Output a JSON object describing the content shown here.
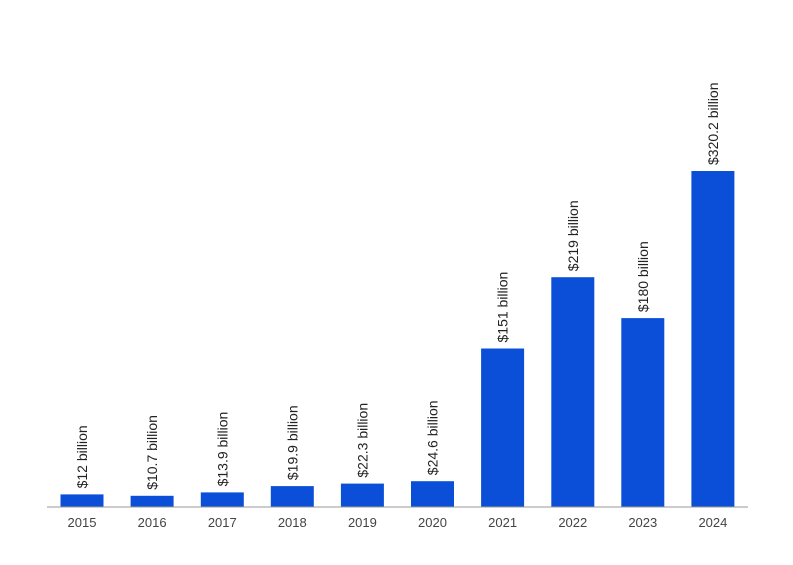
{
  "chart_data": {
    "type": "bar",
    "categories": [
      "2015",
      "2016",
      "2017",
      "2018",
      "2019",
      "2020",
      "2021",
      "2022",
      "2023",
      "2024"
    ],
    "values": [
      12,
      10.7,
      13.9,
      19.9,
      22.3,
      24.6,
      151,
      219,
      180,
      320.2
    ],
    "data_labels": [
      "$12 billion",
      "$10.7 billion",
      "$13.9 billion",
      "$19.9 billion",
      "$22.3 billion",
      "$24.6 billion",
      "$151 billion",
      "$219 billion",
      "$180 billion",
      "$320.2 billion"
    ],
    "title": "",
    "xlabel": "",
    "ylabel": "",
    "ylim": [
      0,
      400
    ],
    "grid": false,
    "legend": "none",
    "bar_color": "#0b4fd8",
    "axis_color": "#999999"
  }
}
